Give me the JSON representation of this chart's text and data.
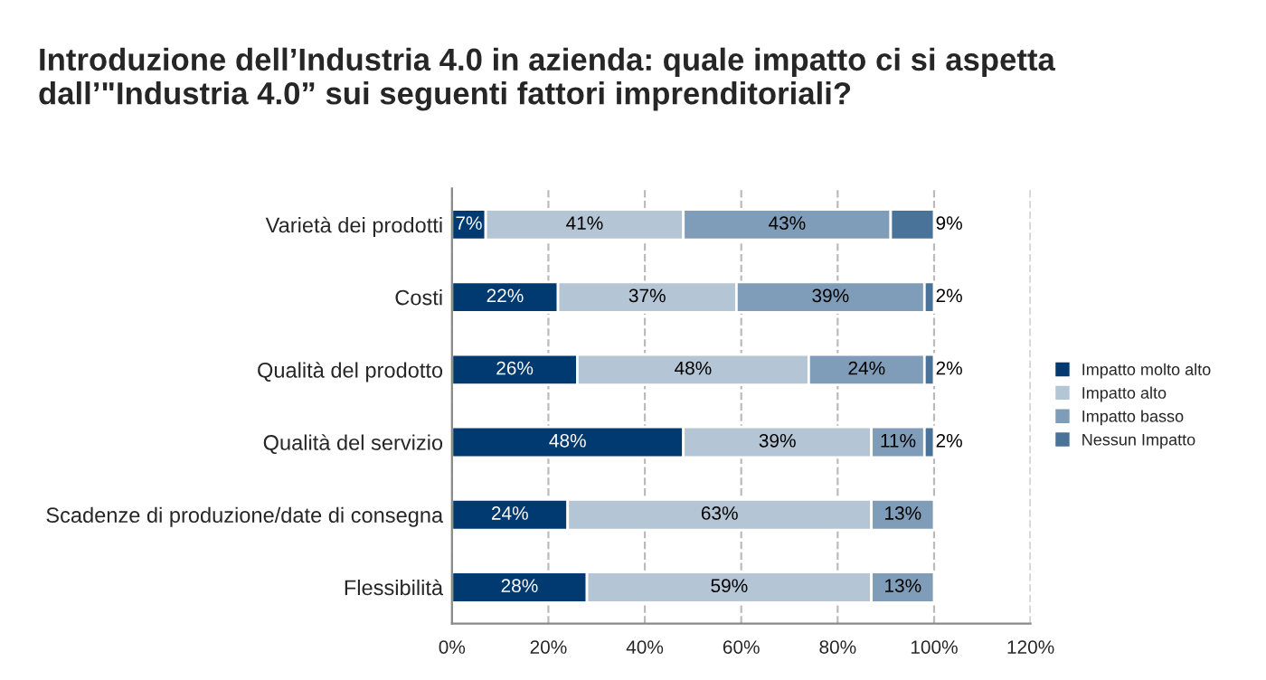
{
  "chart_data": {
    "type": "bar",
    "orientation": "horizontal",
    "stacked": true,
    "title": "Introduzione dell’Industria 4.0 in azienda: quale impatto ci si aspetta dall’\"Industria 4.0” sui seguenti fattori imprenditoriali?",
    "categories": [
      "Varietà dei prodotti",
      "Costi",
      "Qualità del prodotto",
      "Qualità del servizio",
      "Scadenze di produzione/date di consegna",
      "Flessibilità"
    ],
    "series": [
      {
        "name": "Impatto molto alto",
        "color": "#003a70",
        "values": [
          7,
          22,
          26,
          48,
          24,
          28
        ],
        "value_labels": [
          "7%",
          "22%",
          "26%",
          "48%",
          "24%",
          "28%"
        ]
      },
      {
        "name": "Impatto alto",
        "color": "#b4c5d6",
        "values": [
          41,
          37,
          48,
          39,
          63,
          59
        ],
        "value_labels": [
          "41%",
          "37%",
          "48%",
          "39%",
          "63%",
          "59%"
        ]
      },
      {
        "name": "Impatto basso",
        "color": "#7f9db8",
        "values": [
          43,
          39,
          24,
          11,
          13,
          13
        ],
        "value_labels": [
          "43%",
          "39%",
          "24%",
          "11%",
          "13%",
          "13%"
        ]
      },
      {
        "name": "Nessun Impatto",
        "color": "#4a7399",
        "values": [
          9,
          2,
          2,
          2,
          null,
          null
        ],
        "value_labels": [
          "9%",
          "2%",
          "2%",
          "2%",
          null,
          null
        ]
      }
    ],
    "xlim": [
      0,
      120
    ],
    "xticks": [
      {
        "value": 0,
        "label": "0%"
      },
      {
        "value": 20,
        "label": "20%"
      },
      {
        "value": 40,
        "label": "40%"
      },
      {
        "value": 60,
        "label": "60%"
      },
      {
        "value": 80,
        "label": "80%"
      },
      {
        "value": 100,
        "label": "100%"
      },
      {
        "value": 120,
        "label": "120%"
      }
    ],
    "grid": "x",
    "legend": "right"
  }
}
